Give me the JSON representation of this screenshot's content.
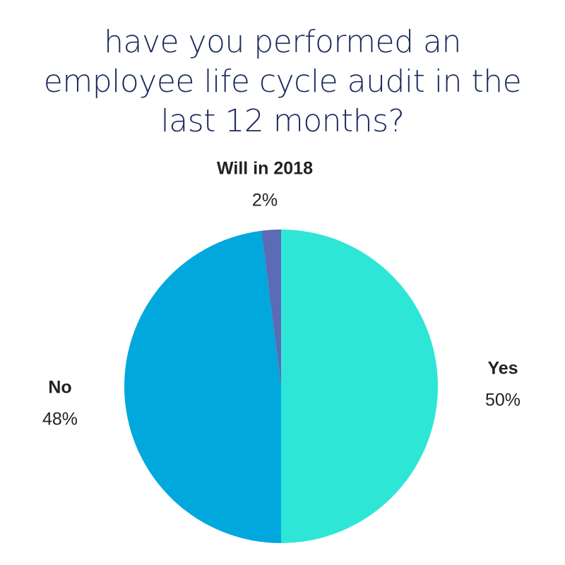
{
  "chart_data": {
    "type": "pie",
    "title": "have you performed an employee life cycle audit in the last 12 months?",
    "categories": [
      "Yes",
      "No",
      "Will in 2018"
    ],
    "values": [
      50,
      48,
      2
    ],
    "value_labels": [
      "50%",
      "48%",
      "2%"
    ],
    "colors": [
      "#2ee6d6",
      "#00a8dd",
      "#5b6bb5"
    ]
  }
}
